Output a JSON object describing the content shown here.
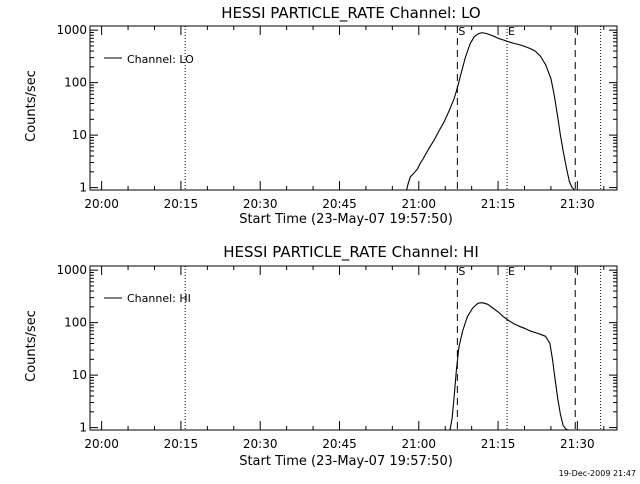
{
  "chart_data": [
    {
      "type": "line",
      "title": "HESSI PARTICLE_RATE Channel: LO",
      "xlabel": "Start Time (23-May-07 19:57:50)",
      "ylabel": "Counts/sec",
      "yscale": "log",
      "ylim": [
        0.9,
        1200
      ],
      "xlim_minutes": [
        -2.2,
        97.5
      ],
      "x_tick_labels": [
        "20:00",
        "20:15",
        "20:30",
        "20:45",
        "21:00",
        "21:15",
        "21:30"
      ],
      "x_tick_minutes": [
        0,
        15,
        30,
        45,
        60,
        75,
        90
      ],
      "y_tick_labels": [
        "1",
        "10",
        "100",
        "1000"
      ],
      "y_tick_values": [
        1,
        10,
        100,
        1000
      ],
      "legend": "Channel: LO",
      "legend_position": "top-left",
      "markers": [
        {
          "label": "",
          "minute": 15.8,
          "style": "dotted"
        },
        {
          "label": "S",
          "minute": 67.3,
          "style": "dashed"
        },
        {
          "label": "E",
          "minute": 76.7,
          "style": "dotted"
        },
        {
          "label": "",
          "minute": 89.6,
          "style": "dashed"
        },
        {
          "label": "",
          "minute": 94.4,
          "style": "dotted"
        }
      ],
      "series": [
        {
          "name": "Channel: LO",
          "x_minutes": [
            57.7,
            58.0,
            58.4,
            58.9,
            59.3,
            59.8,
            60.2,
            60.8,
            61.4,
            62.1,
            62.9,
            63.8,
            64.8,
            65.8,
            66.7,
            67.3,
            68.0,
            68.8,
            69.7,
            70.5,
            71.2,
            72.0,
            73.0,
            74.0,
            75.0,
            76.0,
            77.0,
            78.0,
            79.0,
            80.0,
            81.0,
            82.0,
            83.0,
            84.0,
            85.0,
            85.6,
            86.2,
            86.8,
            87.4,
            88.0,
            88.5,
            89.0,
            89.5
          ],
          "values": [
            0.85,
            1.2,
            1.6,
            1.8,
            2.0,
            2.3,
            2.8,
            3.5,
            4.5,
            6.0,
            8.0,
            12,
            18,
            30,
            50,
            80,
            150,
            300,
            550,
            750,
            850,
            900,
            850,
            780,
            700,
            650,
            600,
            560,
            530,
            490,
            450,
            400,
            320,
            220,
            120,
            60,
            25,
            10,
            4.5,
            2.2,
            1.3,
            1.0,
            0.85
          ]
        }
      ]
    },
    {
      "type": "line",
      "title": "HESSI PARTICLE_RATE Channel: HI",
      "xlabel": "Start Time (23-May-07 19:57:50)",
      "ylabel": "Counts/sec",
      "yscale": "log",
      "ylim": [
        0.9,
        1200
      ],
      "xlim_minutes": [
        -2.2,
        97.5
      ],
      "x_tick_labels": [
        "20:00",
        "20:15",
        "20:30",
        "20:45",
        "21:00",
        "21:15",
        "21:30"
      ],
      "x_tick_minutes": [
        0,
        15,
        30,
        45,
        60,
        75,
        90
      ],
      "y_tick_labels": [
        "1",
        "10",
        "100",
        "1000"
      ],
      "y_tick_values": [
        1,
        10,
        100,
        1000
      ],
      "legend": "Channel: HI",
      "legend_position": "top-left",
      "markers": [
        {
          "label": "",
          "minute": 15.8,
          "style": "dotted"
        },
        {
          "label": "S",
          "minute": 67.3,
          "style": "dashed"
        },
        {
          "label": "E",
          "minute": 76.7,
          "style": "dotted"
        },
        {
          "label": "",
          "minute": 89.6,
          "style": "dashed"
        },
        {
          "label": "",
          "minute": 94.4,
          "style": "dotted"
        }
      ],
      "series": [
        {
          "name": "Channel: HI",
          "x_minutes": [
            65.9,
            66.3,
            66.7,
            67.1,
            67.6,
            68.3,
            69.2,
            70.2,
            71.2,
            72.0,
            73.0,
            74.0,
            75.0,
            76.0,
            77.0,
            78.0,
            79.0,
            80.0,
            81.0,
            82.0,
            83.0,
            84.0,
            84.8,
            85.3,
            85.8,
            86.3,
            86.8,
            87.3,
            87.8,
            88.2
          ],
          "values": [
            0.85,
            1.5,
            4,
            12,
            35,
            70,
            130,
            190,
            235,
            240,
            225,
            190,
            160,
            130,
            110,
            95,
            85,
            78,
            70,
            65,
            60,
            55,
            40,
            20,
            8,
            3.5,
            1.8,
            1.1,
            0.95,
            0.85
          ]
        }
      ]
    }
  ],
  "timestamp": "19-Dec-2009 21:47"
}
